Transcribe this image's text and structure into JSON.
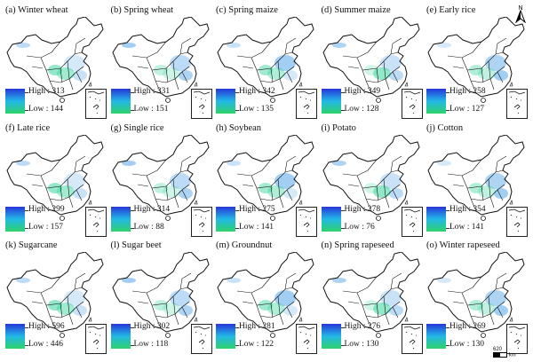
{
  "panels": [
    {
      "label": "(a) Winter wheat",
      "high": "High : 313",
      "low": "Low : 144"
    },
    {
      "label": "(b) Spring wheat",
      "high": "High : 331",
      "low": "Low : 151"
    },
    {
      "label": "(c) Spring maize",
      "high": "High : 342",
      "low": "Low : 135"
    },
    {
      "label": "(d) Summer maize",
      "high": "High : 349",
      "low": "Low : 128"
    },
    {
      "label": "(e) Early rice",
      "high": "High : 258",
      "low": "Low : 127"
    },
    {
      "label": "(f) Late rice",
      "high": "High : 299",
      "low": "Low : 157"
    },
    {
      "label": "(g) Single rice",
      "high": "High : 314",
      "low": "Low : 88"
    },
    {
      "label": "(h) Soybean",
      "high": "High : 275",
      "low": "Low : 141"
    },
    {
      "label": "(i) Potato",
      "high": "High : 278",
      "low": "Low : 76"
    },
    {
      "label": "(j) Cotton",
      "high": "High : 354",
      "low": "Low : 141"
    },
    {
      "label": "(k) Sugarcane",
      "high": "High : 596",
      "low": "Low : 446"
    },
    {
      "label": "(l) Sugar beet",
      "high": "High : 302",
      "low": "Low : 118"
    },
    {
      "label": "(m) Groundnut",
      "high": "High : 281",
      "low": "Low : 122"
    },
    {
      "label": "(n) Spring rapeseed",
      "high": "High : 276",
      "low": "Low : 130"
    },
    {
      "label": "(o) Winter rapeseed",
      "high": "High : 269",
      "low": "Low : 130"
    }
  ],
  "legend_colors": {
    "high": "#2636d8",
    "mid": "#22b8e6",
    "low": "#2ed36a"
  },
  "north_arrow": "N",
  "scale_bar": {
    "value": "620",
    "unit": "km"
  }
}
